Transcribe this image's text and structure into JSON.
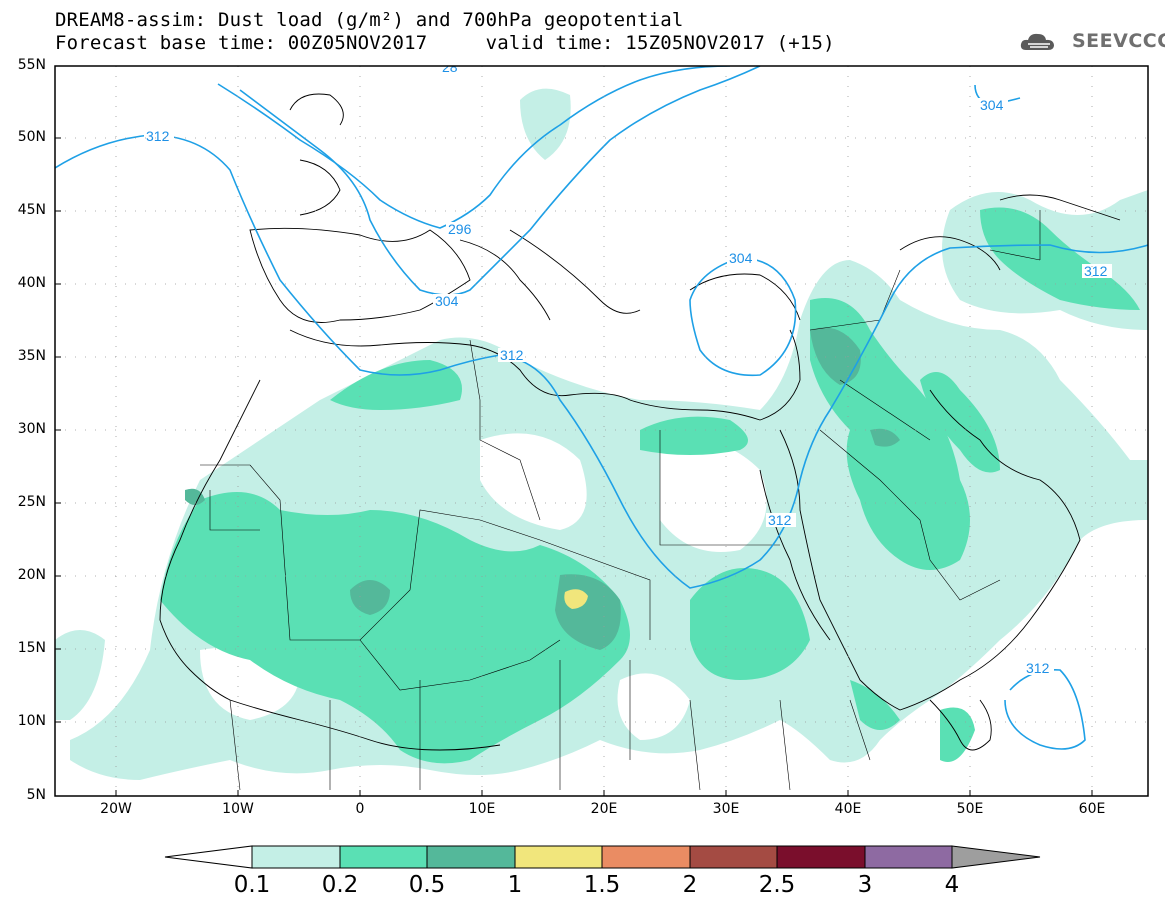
{
  "header": {
    "line1": "DREAM8-assim: Dust load (g/m²) and 700hPa geopotential",
    "line2": "Forecast base time: 00Z05NOV2017     valid time: 15Z05NOV2017 (+15)"
  },
  "logo": {
    "text": "SEEVCCC",
    "icon": "cloud-icon"
  },
  "axes": {
    "lat_labels": [
      "55N",
      "50N",
      "45N",
      "40N",
      "35N",
      "30N",
      "25N",
      "20N",
      "15N",
      "10N",
      "5N"
    ],
    "lon_labels": [
      "20W",
      "10W",
      "0",
      "10E",
      "20E",
      "30E",
      "40E",
      "50E",
      "60E"
    ]
  },
  "contours": {
    "labels": [
      "312",
      "296",
      "304",
      "312",
      "304",
      "312",
      "312",
      "304",
      "312",
      "312",
      "28"
    ]
  },
  "colorbar": {
    "colors": [
      "#c4efe6",
      "#5ae0b4",
      "#54b89a",
      "#f1e67c",
      "#ea8c63",
      "#a44b43",
      "#7a0e2c",
      "#8e6aa2",
      "#9e9e9e"
    ],
    "labels": [
      "0.1",
      "0.2",
      "0.5",
      "1",
      "1.5",
      "2",
      "2.5",
      "3",
      "4"
    ]
  }
}
